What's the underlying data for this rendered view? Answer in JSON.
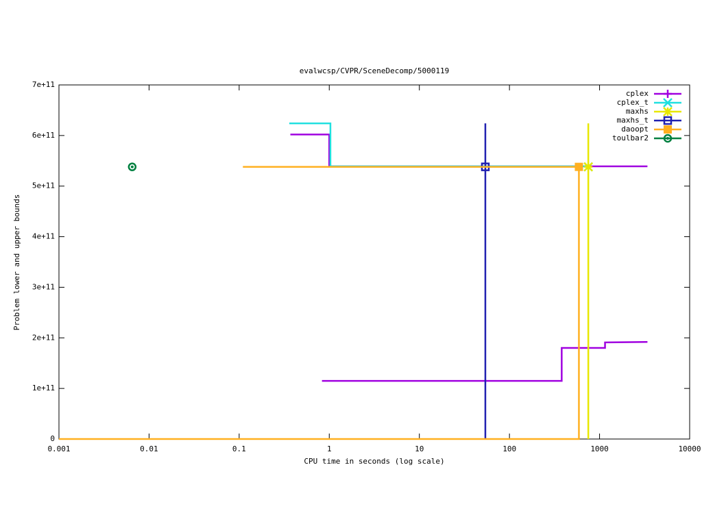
{
  "chart_data": {
    "type": "line",
    "title": "evalwcsp/CVPR/SceneDecomp/5000119",
    "x_label": "CPU time in seconds (log scale)",
    "y_label": "Problem lower and upper bounds",
    "xlog": true,
    "grid": false,
    "legend": "top-right",
    "xlim": [
      0.001,
      10000
    ],
    "xticks": [
      0.001,
      0.01,
      0.1,
      1,
      10,
      100,
      1000,
      10000
    ],
    "ylim": [
      0,
      700000000000
    ],
    "yticks": [
      0,
      {
        "value": 100000000000,
        "label": "1e+11"
      },
      {
        "value": 200000000000,
        "label": "2e+11"
      },
      {
        "value": 300000000000,
        "label": "3e+11"
      },
      {
        "value": 400000000000,
        "label": "4e+11"
      },
      {
        "value": 500000000000,
        "label": "5e+11"
      },
      {
        "value": 600000000000,
        "label": "6e+11"
      },
      {
        "value": 700000000000,
        "label": "7e+11"
      }
    ],
    "series": [
      {
        "name": "cplex",
        "color": "#a000e0",
        "marker": "plus",
        "x": [
          0.37,
          1,
          1,
          3400,
          null,
          0.83,
          380,
          380,
          1150,
          1150,
          3400
        ],
        "values": [
          602000000000,
          602000000000,
          539000000000,
          539000000000,
          null,
          115000000000,
          115000000000,
          180000000000,
          180000000000,
          191000000000,
          192000000000
        ],
        "marker_x": [],
        "marker_values": []
      },
      {
        "name": "cplex_t",
        "color": "#20e0e0",
        "marker": "cross",
        "x": [
          0.36,
          1.03,
          1.03,
          750
        ],
        "values": [
          624000000000,
          624000000000,
          539000000000,
          539000000000
        ],
        "marker_x": [
          750
        ],
        "marker_values": [
          538000000000
        ]
      },
      {
        "name": "maxhs",
        "color": "#e8e800",
        "marker": "star",
        "x": [
          750,
          750
        ],
        "values": [
          0,
          624000000000
        ],
        "marker_x": [
          750
        ],
        "marker_values": [
          538000000000
        ]
      },
      {
        "name": "maxhs_t",
        "color": "#2020b0",
        "marker": "square",
        "x": [
          54,
          54
        ],
        "values": [
          0,
          624000000000
        ],
        "marker_x": [
          54
        ],
        "marker_values": [
          538000000000
        ]
      },
      {
        "name": "daoopt",
        "color": "#ffb020",
        "marker": "filled-square",
        "x": [
          0.11,
          590,
          590,
          0.001
        ],
        "values": [
          538000000000,
          538000000000,
          0,
          0
        ],
        "marker_x": [
          590
        ],
        "marker_values": [
          538000000000
        ]
      },
      {
        "name": "toulbar2",
        "color": "#008040",
        "marker": "circle",
        "x": [],
        "values": [],
        "marker_x": [
          0.0065
        ],
        "marker_values": [
          538000000000
        ]
      }
    ]
  }
}
